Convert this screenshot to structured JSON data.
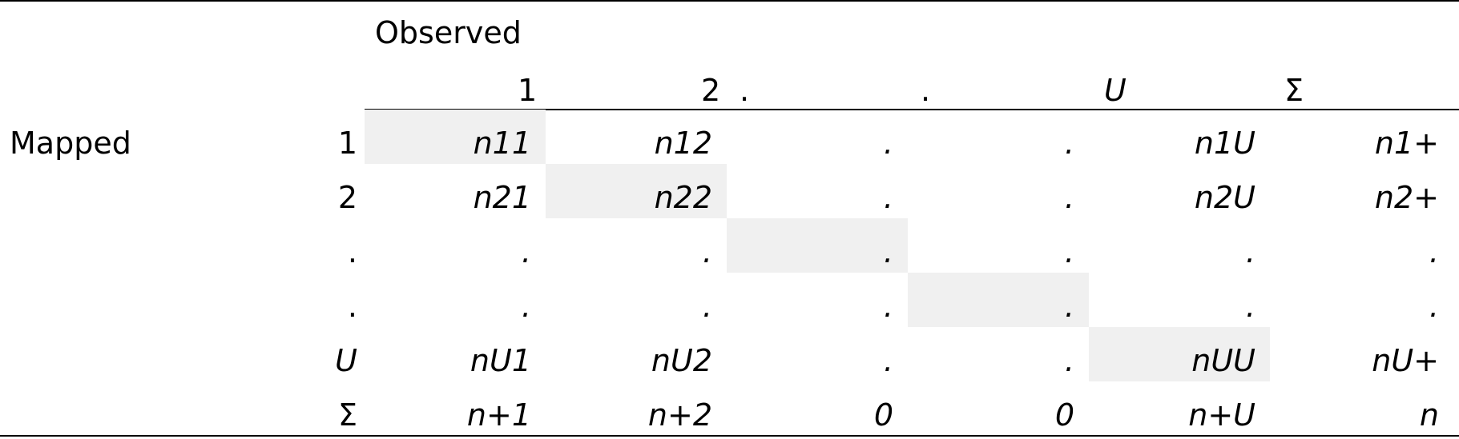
{
  "table": {
    "observed_label": "Observed",
    "mapped_label": "Mapped",
    "column_headers": [
      {
        "text": "1",
        "italic": false
      },
      {
        "text": "2",
        "italic": false
      },
      {
        "text": ".",
        "italic": false
      },
      {
        "text": ".",
        "italic": false
      },
      {
        "text": "U",
        "italic": true
      },
      {
        "text": "Σ",
        "italic": false
      }
    ],
    "row_headers": [
      {
        "text": "1",
        "italic": false
      },
      {
        "text": "2",
        "italic": false
      },
      {
        "text": ".",
        "italic": false
      },
      {
        "text": ".",
        "italic": false
      },
      {
        "text": "U",
        "italic": true
      },
      {
        "text": "Σ",
        "italic": false
      }
    ],
    "rows": [
      [
        "n11",
        "n12",
        ".",
        ".",
        "n1U",
        "n1+"
      ],
      [
        "n21",
        "n22",
        ".",
        ".",
        "n2U",
        "n2+"
      ],
      [
        ".",
        ".",
        ".",
        ".",
        ".",
        "."
      ],
      [
        ".",
        ".",
        ".",
        ".",
        ".",
        "."
      ],
      [
        "nU1",
        "nU2",
        ".",
        ".",
        "nUU",
        "nU+"
      ],
      [
        "n+1",
        "n+2",
        "0",
        "0",
        "n+U",
        "n"
      ]
    ],
    "diagonal_highlight_color": "#f0f0f0"
  }
}
